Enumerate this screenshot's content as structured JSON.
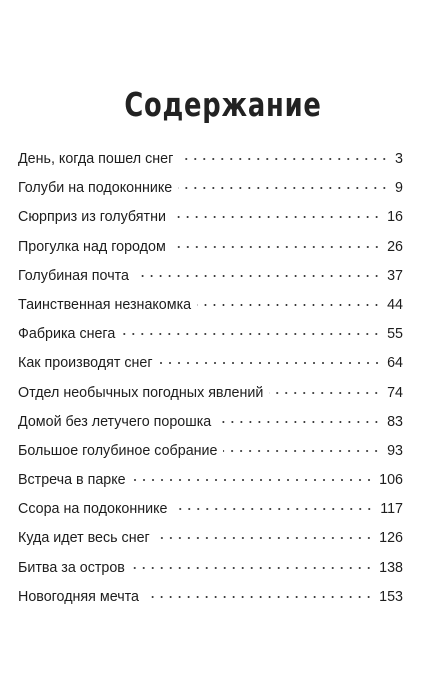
{
  "heading": "Содержание",
  "entries": [
    {
      "title": "День, когда пошел снег",
      "page": "3"
    },
    {
      "title": "Голуби на подоконнике",
      "page": "9"
    },
    {
      "title": "Сюрприз из голубятни",
      "page": "16"
    },
    {
      "title": "Прогулка над городом",
      "page": "26"
    },
    {
      "title": "Голубиная почта",
      "page": "37"
    },
    {
      "title": "Таинственная незнакомка",
      "page": "44"
    },
    {
      "title": "Фабрика снега",
      "page": "55"
    },
    {
      "title": "Как производят снег",
      "page": "64"
    },
    {
      "title": "Отдел необычных погодных явлений",
      "page": "74"
    },
    {
      "title": "Домой без летучего порошка",
      "page": "83"
    },
    {
      "title": "Большое голубиное собрание",
      "page": "93"
    },
    {
      "title": "Встреча в парке",
      "page": "106"
    },
    {
      "title": "Ссора на подоконнике",
      "page": "117"
    },
    {
      "title": "Куда идет весь снег",
      "page": "126"
    },
    {
      "title": "Битва за остров",
      "page": "138"
    },
    {
      "title": "Новогодняя мечта",
      "page": "153"
    }
  ]
}
